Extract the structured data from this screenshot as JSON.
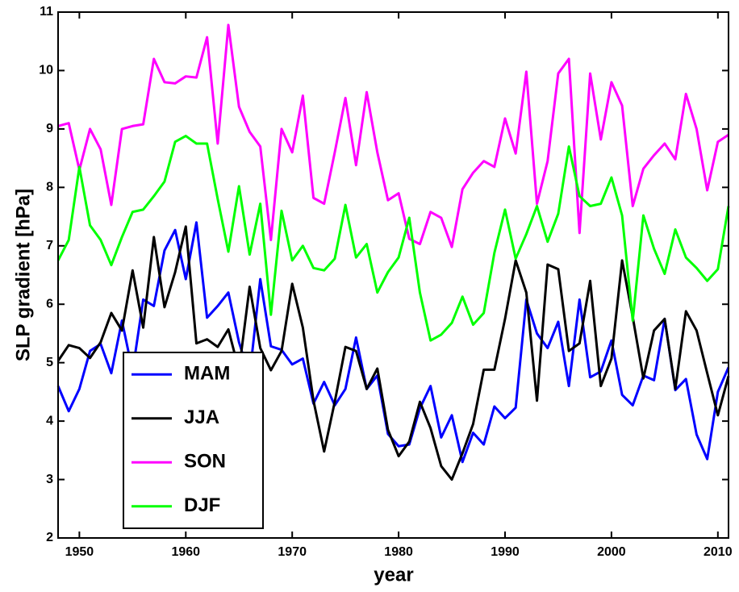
{
  "chart_data": {
    "type": "line",
    "xlabel": "year",
    "ylabel": "SLP gradient [hPa]",
    "x": [
      1948,
      1949,
      1950,
      1951,
      1952,
      1953,
      1954,
      1955,
      1956,
      1957,
      1958,
      1959,
      1960,
      1961,
      1962,
      1963,
      1964,
      1965,
      1966,
      1967,
      1968,
      1969,
      1970,
      1971,
      1972,
      1973,
      1974,
      1975,
      1976,
      1977,
      1978,
      1979,
      1980,
      1981,
      1982,
      1983,
      1984,
      1985,
      1986,
      1987,
      1988,
      1989,
      1990,
      1991,
      1992,
      1993,
      1994,
      1995,
      1996,
      1997,
      1998,
      1999,
      2000,
      2001,
      2002,
      2003,
      2004,
      2005,
      2006,
      2007,
      2008,
      2009,
      2010,
      2011
    ],
    "series": [
      {
        "name": "MAM",
        "color": "#0000ff",
        "values": [
          4.6,
          4.17,
          4.55,
          5.2,
          5.32,
          4.82,
          5.72,
          4.85,
          6.08,
          5.97,
          6.92,
          7.27,
          6.43,
          7.4,
          5.77,
          5.97,
          6.2,
          5.35,
          4.77,
          6.43,
          5.28,
          5.22,
          4.97,
          5.07,
          4.3,
          4.67,
          4.27,
          4.55,
          5.43,
          4.55,
          4.78,
          3.78,
          3.57,
          3.6,
          4.22,
          4.6,
          3.72,
          4.1,
          3.3,
          3.8,
          3.6,
          4.25,
          4.05,
          4.23,
          6.08,
          5.5,
          5.25,
          5.7,
          4.6,
          6.08,
          4.75,
          4.85,
          5.38,
          4.45,
          4.27,
          4.78,
          4.7,
          5.75,
          4.53,
          4.72,
          3.77,
          3.35,
          4.5,
          4.92
        ]
      },
      {
        "name": "JJA",
        "color": "#000000",
        "values": [
          5.03,
          5.3,
          5.25,
          5.08,
          5.35,
          5.85,
          5.55,
          6.58,
          5.6,
          7.15,
          5.95,
          6.55,
          7.33,
          5.33,
          5.4,
          5.27,
          5.57,
          4.87,
          6.3,
          5.25,
          4.87,
          5.2,
          6.35,
          5.6,
          4.35,
          3.48,
          4.33,
          5.27,
          5.2,
          4.55,
          4.9,
          3.85,
          3.4,
          3.65,
          4.33,
          3.88,
          3.23,
          3.0,
          3.45,
          3.95,
          4.88,
          4.88,
          5.75,
          6.75,
          6.2,
          4.35,
          6.68,
          6.6,
          5.2,
          5.33,
          6.4,
          4.6,
          5.07,
          6.75,
          5.78,
          4.73,
          5.55,
          5.75,
          4.55,
          5.88,
          5.55,
          4.82,
          4.1,
          4.77
        ]
      },
      {
        "name": "SON",
        "color": "#ff00ff",
        "values": [
          9.05,
          9.1,
          8.3,
          9.0,
          8.65,
          7.7,
          9.0,
          9.05,
          9.08,
          10.2,
          9.8,
          9.78,
          9.9,
          9.88,
          10.57,
          8.75,
          10.78,
          9.38,
          8.95,
          8.7,
          7.1,
          9.0,
          8.6,
          9.57,
          7.82,
          7.72,
          8.6,
          9.53,
          8.38,
          9.63,
          8.6,
          7.78,
          7.9,
          7.12,
          7.03,
          7.58,
          7.48,
          6.98,
          7.97,
          8.25,
          8.45,
          8.35,
          9.18,
          8.58,
          9.98,
          7.72,
          8.45,
          9.95,
          10.2,
          7.22,
          9.95,
          8.82,
          9.8,
          9.4,
          7.68,
          8.32,
          8.55,
          8.75,
          8.48,
          9.6,
          9.0,
          7.95,
          8.78,
          8.9
        ]
      },
      {
        "name": "DJF",
        "color": "#00ff00",
        "values": [
          6.75,
          7.1,
          8.35,
          7.35,
          7.1,
          6.67,
          7.15,
          7.58,
          7.62,
          7.85,
          8.1,
          8.78,
          8.88,
          8.75,
          8.75,
          7.8,
          6.9,
          8.02,
          6.85,
          7.72,
          5.82,
          7.6,
          6.75,
          7.0,
          6.62,
          6.58,
          6.78,
          7.7,
          6.8,
          7.03,
          6.2,
          6.55,
          6.8,
          7.48,
          6.2,
          5.38,
          5.48,
          5.68,
          6.13,
          5.65,
          5.85,
          6.88,
          7.62,
          6.78,
          7.2,
          7.68,
          7.07,
          7.55,
          8.7,
          7.85,
          7.68,
          7.72,
          8.17,
          7.52,
          5.72,
          7.52,
          6.95,
          6.52,
          7.28,
          6.8,
          6.62,
          6.4,
          6.6,
          7.68
        ]
      }
    ],
    "xlim": [
      1948,
      2011
    ],
    "xticks": [
      1950,
      1960,
      1970,
      1980,
      1990,
      2000,
      2010
    ],
    "ylim": [
      2,
      11
    ],
    "yticks": [
      2,
      3,
      4,
      5,
      6,
      7,
      8,
      9,
      10,
      11
    ],
    "grid": false,
    "legend": "lower left"
  }
}
